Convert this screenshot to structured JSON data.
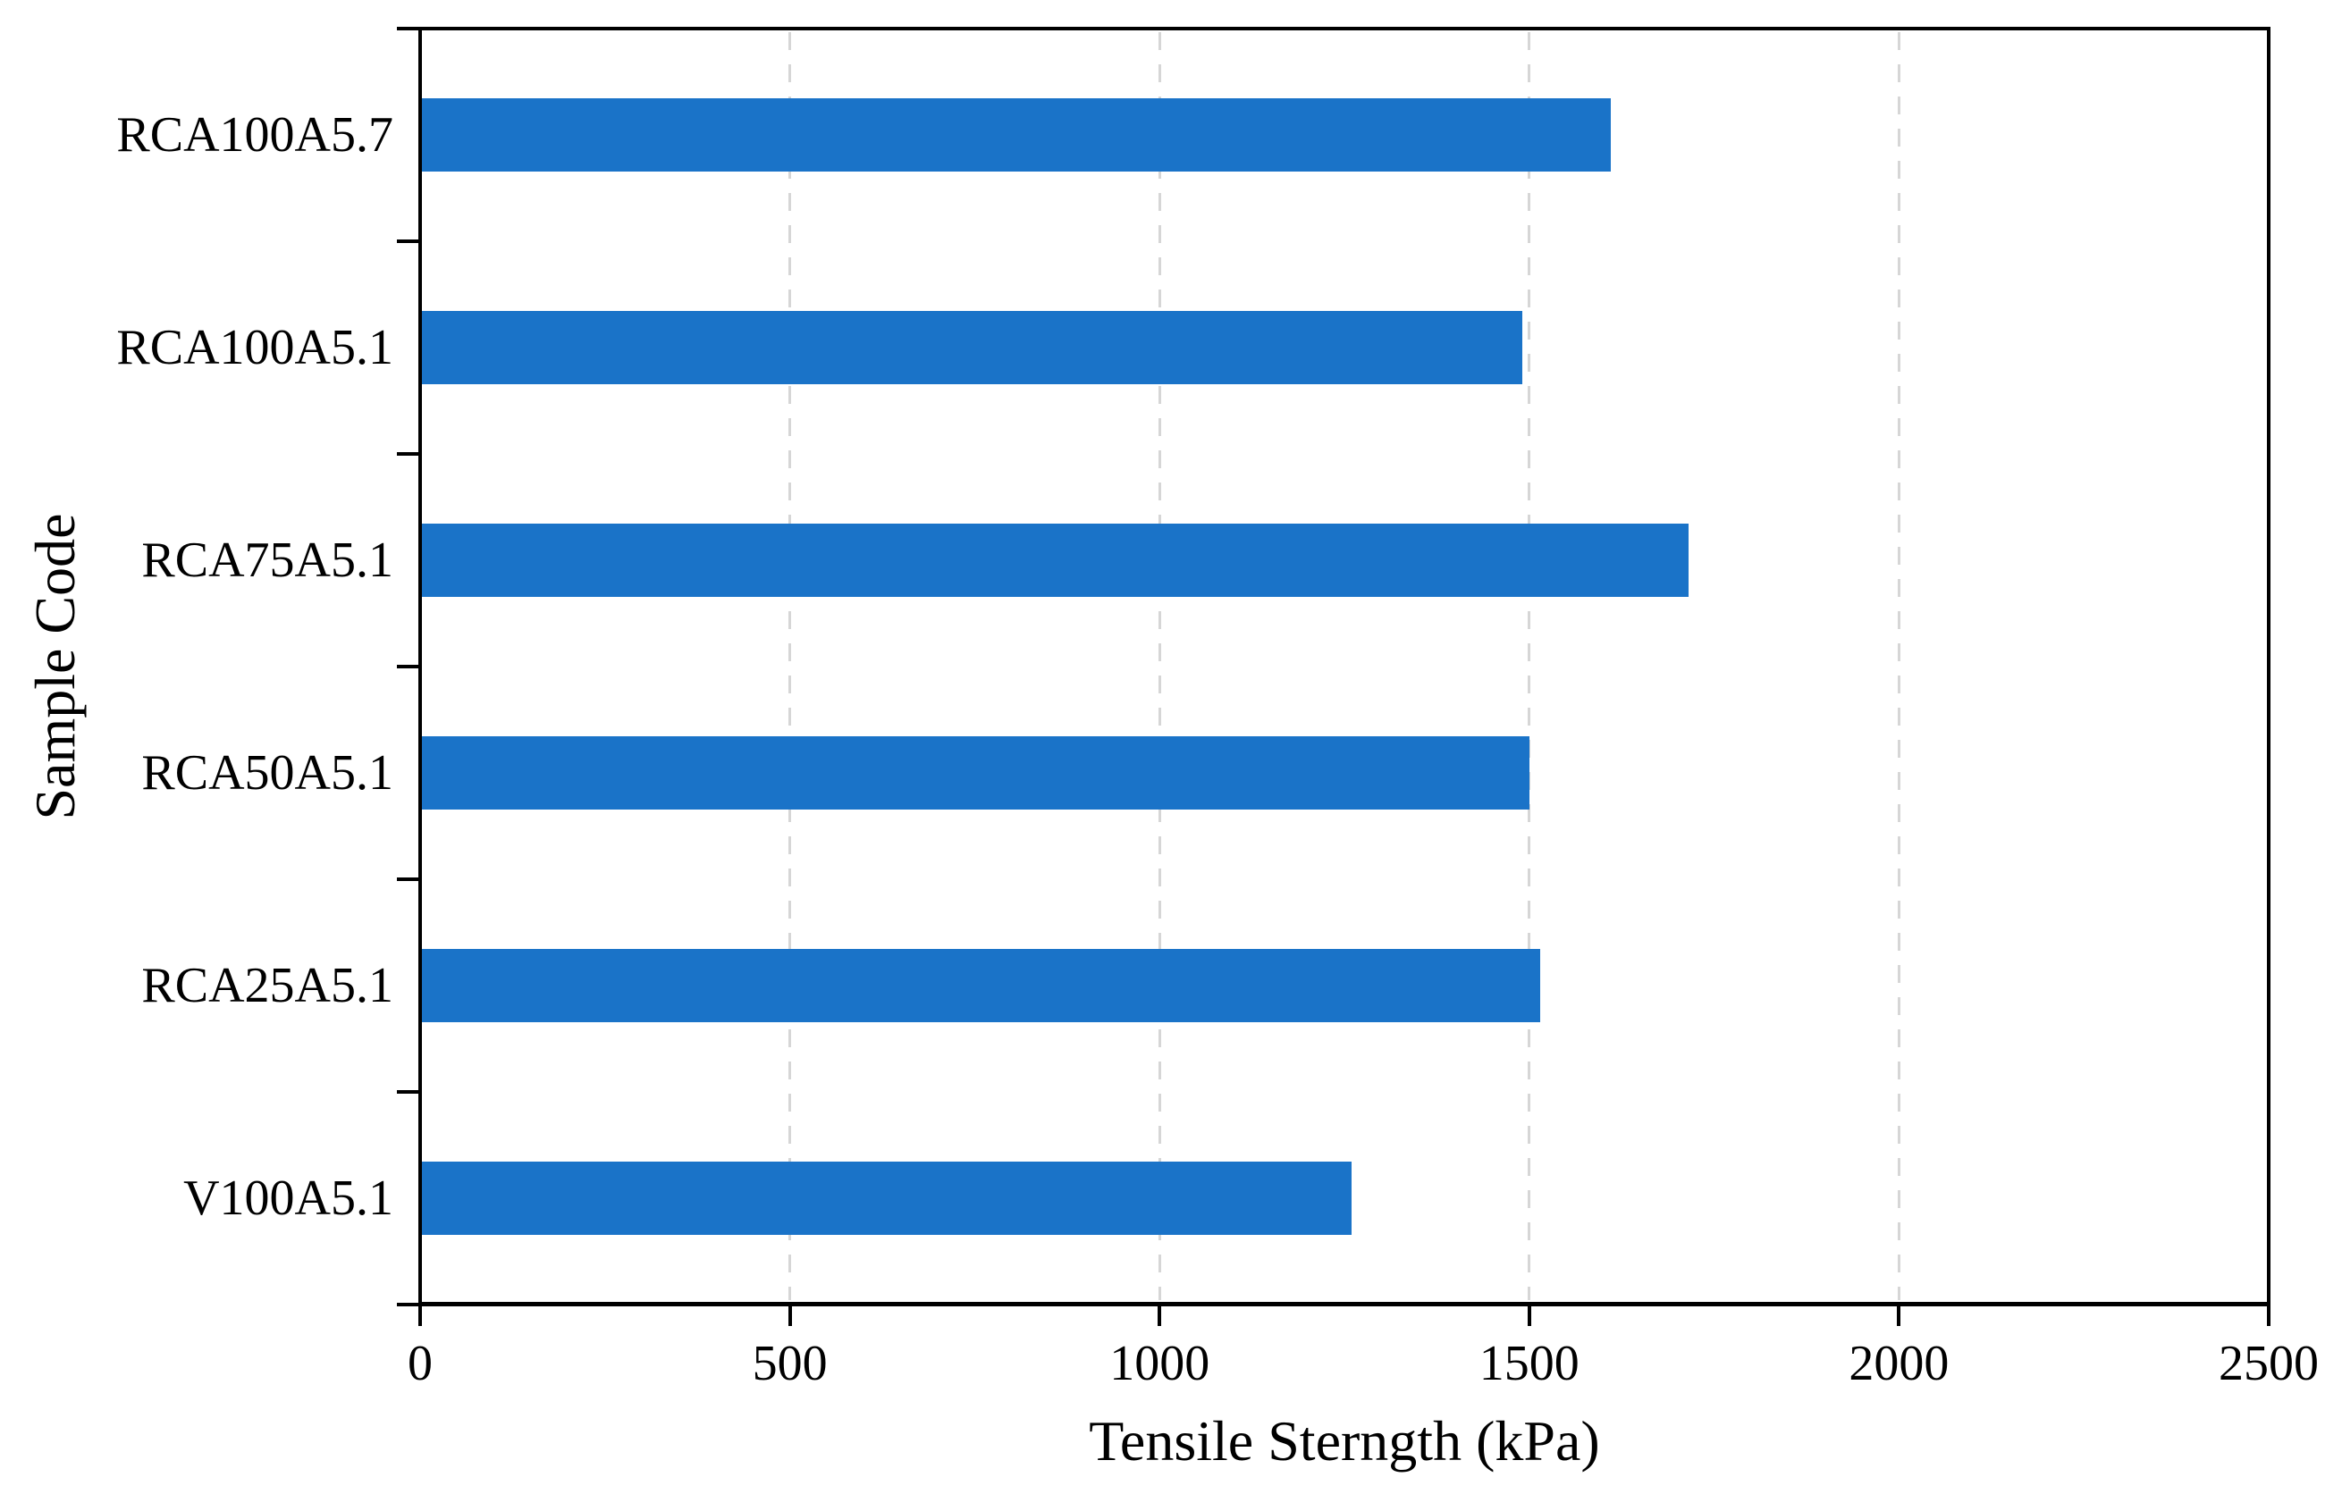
{
  "chart_data": {
    "type": "bar",
    "orientation": "horizontal",
    "title": "",
    "xlabel": "Tensile Sterngth (kPa)",
    "ylabel": "Sample Code",
    "categories": [
      "RCA100A5.7",
      "RCA100A5.1",
      "RCA75A5.1",
      "RCA50A5.1",
      "RCA25A5.1",
      "V100A5.1"
    ],
    "values": [
      1610,
      1490,
      1715,
      1500,
      1515,
      1260
    ],
    "xlim": [
      0,
      2500
    ],
    "xticks": [
      0,
      500,
      1000,
      1500,
      2000,
      2500
    ],
    "grid": {
      "axis": "x",
      "style": "dashed",
      "color": "#d6d6d6"
    },
    "legend_position": "none",
    "bar_color": "#1a73c8",
    "axis_color": "#000000",
    "background_color": "#ffffff"
  }
}
